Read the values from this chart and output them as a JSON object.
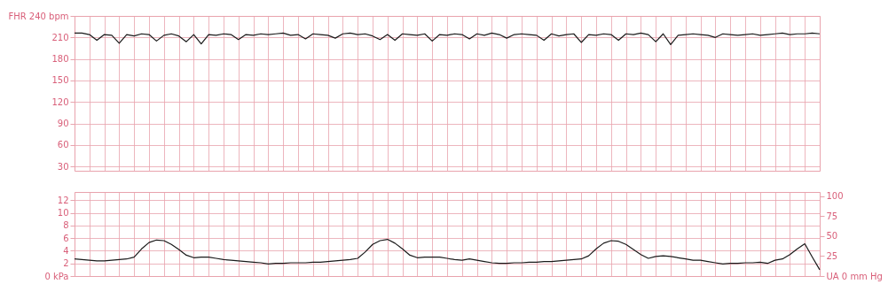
{
  "chart_data": [
    {
      "type": "line",
      "categories": [
        null,
        null,
        null,
        null,
        null,
        null,
        null,
        null,
        null,
        null,
        null,
        null,
        null,
        null,
        null,
        null,
        null,
        null,
        null,
        null,
        null,
        null,
        null,
        null,
        null,
        null,
        null,
        null,
        null,
        null,
        null,
        null,
        null,
        null,
        null,
        null,
        null,
        null,
        null,
        null,
        null,
        null,
        null,
        null,
        null,
        null,
        null,
        null,
        null,
        null,
        null,
        null,
        null,
        null,
        null,
        null,
        null,
        null,
        null,
        null,
        null,
        null,
        null,
        null,
        null,
        null,
        null,
        null,
        null,
        null,
        null,
        null,
        null,
        null,
        null,
        null,
        null,
        null,
        null,
        null,
        null,
        null,
        null,
        null,
        null,
        null,
        null,
        null,
        null,
        null,
        null,
        null,
        null,
        null,
        null,
        null,
        null,
        null,
        null,
        null,
        null
      ],
      "series": [
        {
          "color": "#1a1a1a",
          "values": [
            216,
            216,
            214,
            206,
            214,
            213,
            202,
            214,
            212,
            215,
            214,
            205,
            213,
            215,
            212,
            204,
            214,
            201,
            214,
            213,
            215,
            214,
            207,
            214,
            213,
            215,
            214,
            215,
            216,
            213,
            214,
            208,
            215,
            214,
            213,
            209,
            215,
            216,
            214,
            215,
            212,
            207,
            214,
            206,
            215,
            214,
            213,
            215,
            205,
            214,
            213,
            215,
            214,
            208,
            215,
            213,
            216,
            214,
            209,
            214,
            215,
            214,
            213,
            206,
            215,
            212,
            214,
            215,
            203,
            214,
            213,
            215,
            214,
            206,
            215,
            214,
            216,
            214,
            204,
            215,
            200,
            213,
            214,
            215,
            214,
            213,
            210,
            215,
            214,
            213,
            214,
            215,
            213,
            214,
            215,
            216,
            214,
            215,
            215,
            216,
            215
          ]
        }
      ],
      "ylim": [
        24,
        240
      ],
      "yticks": [
        30,
        60,
        90,
        120,
        150,
        180,
        210,
        {
          "value": 240,
          "label": "FHR 240 bpm"
        }
      ],
      "grid": true,
      "tick_labels": "y",
      "line_style": "solid"
    },
    {
      "type": "line",
      "categories": [
        null,
        null,
        null,
        null,
        null,
        null,
        null,
        null,
        null,
        null,
        null,
        null,
        null,
        null,
        null,
        null,
        null,
        null,
        null,
        null,
        null,
        null,
        null,
        null,
        null,
        null,
        null,
        null,
        null,
        null,
        null,
        null,
        null,
        null,
        null,
        null,
        null,
        null,
        null,
        null,
        null,
        null,
        null,
        null,
        null,
        null,
        null,
        null,
        null,
        null,
        null,
        null,
        null,
        null,
        null,
        null,
        null,
        null,
        null,
        null,
        null,
        null,
        null,
        null,
        null,
        null,
        null,
        null,
        null,
        null,
        null,
        null,
        null,
        null,
        null,
        null,
        null,
        null,
        null,
        null,
        null,
        null,
        null,
        null,
        null,
        null,
        null,
        null,
        null,
        null,
        null,
        null,
        null,
        null,
        null,
        null,
        null,
        null,
        null,
        null,
        null
      ],
      "series": [
        {
          "color": "#1a1a1a",
          "values": [
            2.7,
            2.6,
            2.5,
            2.4,
            2.4,
            2.5,
            2.6,
            2.7,
            3.0,
            4.3,
            5.3,
            5.7,
            5.6,
            5.0,
            4.2,
            3.3,
            2.9,
            3.0,
            3.0,
            2.8,
            2.6,
            2.5,
            2.4,
            2.3,
            2.2,
            2.1,
            1.9,
            2.0,
            2.0,
            2.1,
            2.1,
            2.1,
            2.2,
            2.2,
            2.3,
            2.4,
            2.5,
            2.6,
            2.8,
            3.8,
            5.0,
            5.6,
            5.8,
            5.2,
            4.3,
            3.3,
            2.9,
            3.0,
            3.0,
            3.0,
            2.8,
            2.6,
            2.5,
            2.7,
            2.5,
            2.3,
            2.1,
            2.0,
            2.0,
            2.1,
            2.1,
            2.2,
            2.2,
            2.3,
            2.3,
            2.4,
            2.5,
            2.6,
            2.7,
            3.2,
            4.3,
            5.2,
            5.6,
            5.5,
            5.0,
            4.2,
            3.4,
            2.8,
            3.1,
            3.2,
            3.1,
            2.9,
            2.7,
            2.5,
            2.5,
            2.3,
            2.1,
            1.9,
            2.0,
            2.0,
            2.1,
            2.1,
            2.2,
            2.0,
            2.5,
            2.7,
            3.4,
            4.3,
            5.1,
            3.0,
            1.0
          ]
        }
      ],
      "ylim": [
        0,
        13.3
      ],
      "yticks": [
        {
          "value": 0,
          "label": "0 kPa"
        },
        2,
        4,
        6,
        8,
        10,
        12
      ],
      "y2lim": [
        0,
        105
      ],
      "y2ticks": [
        {
          "value": 0,
          "label": "UA 0 mm Hg"
        },
        25,
        50,
        75,
        100
      ],
      "grid": true,
      "tick_labels": "y",
      "line_style": "solid"
    }
  ]
}
